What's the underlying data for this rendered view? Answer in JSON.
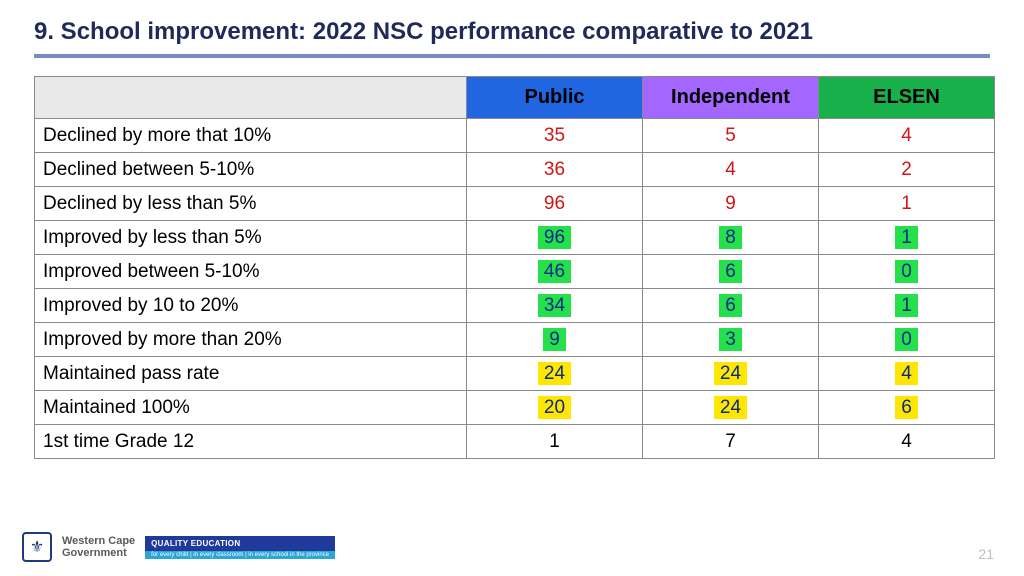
{
  "title": "9. School improvement: 2022 NSC performance comparative to 2021",
  "hr_color": "#7b8ac7",
  "columns": [
    {
      "label": "Public",
      "bg": "#1f66e0",
      "fg": "#000000"
    },
    {
      "label": "Independent",
      "bg": "#a366ff",
      "fg": "#000000"
    },
    {
      "label": "ELSEN",
      "bg": "#17b04b",
      "fg": "#000000"
    }
  ],
  "value_styles": {
    "red": {
      "color": "#d01616",
      "highlight": null
    },
    "green": {
      "color": "#0a2a8a",
      "highlight": "#24e04a"
    },
    "yellow": {
      "color": "#0a2a8a",
      "highlight": "#ffe600"
    },
    "plain": {
      "color": "#000000",
      "highlight": null
    }
  },
  "rows": [
    {
      "label": "Declined by more that 10%",
      "vals": [
        {
          "v": "35",
          "s": "red"
        },
        {
          "v": "5",
          "s": "red"
        },
        {
          "v": "4",
          "s": "red"
        }
      ]
    },
    {
      "label": "Declined between 5-10%",
      "vals": [
        {
          "v": "36",
          "s": "red"
        },
        {
          "v": "4",
          "s": "red"
        },
        {
          "v": "2",
          "s": "red"
        }
      ]
    },
    {
      "label": "Declined by less  than 5%",
      "vals": [
        {
          "v": "96",
          "s": "red"
        },
        {
          "v": "9",
          "s": "red"
        },
        {
          "v": "1",
          "s": "red"
        }
      ]
    },
    {
      "label": "Improved by less than 5%",
      "vals": [
        {
          "v": "96",
          "s": "green"
        },
        {
          "v": "8",
          "s": "green"
        },
        {
          "v": "1",
          "s": "green"
        }
      ]
    },
    {
      "label": "Improved between 5-10%",
      "vals": [
        {
          "v": "46",
          "s": "green"
        },
        {
          "v": "6",
          "s": "green"
        },
        {
          "v": "0",
          "s": "green"
        }
      ]
    },
    {
      "label": "Improved by 10 to 20%",
      "vals": [
        {
          "v": "34",
          "s": "green"
        },
        {
          "v": "6",
          "s": "green"
        },
        {
          "v": "1",
          "s": "green"
        }
      ]
    },
    {
      "label": "Improved by more than 20%",
      "vals": [
        {
          "v": "9",
          "s": "green"
        },
        {
          "v": "3",
          "s": "green"
        },
        {
          "v": "0",
          "s": "green"
        }
      ]
    },
    {
      "label": "Maintained pass rate",
      "vals": [
        {
          "v": "24",
          "s": "yellow"
        },
        {
          "v": "24",
          "s": "yellow"
        },
        {
          "v": "4",
          "s": "yellow"
        }
      ]
    },
    {
      "label": "Maintained 100%",
      "vals": [
        {
          "v": "20",
          "s": "yellow"
        },
        {
          "v": "24",
          "s": "yellow"
        },
        {
          "v": "6",
          "s": "yellow"
        }
      ]
    },
    {
      "label": "1st time Grade 12",
      "vals": [
        {
          "v": "1",
          "s": "plain"
        },
        {
          "v": "7",
          "s": "plain"
        },
        {
          "v": "4",
          "s": "plain"
        }
      ]
    }
  ],
  "footer": {
    "gov_line1": "Western Cape",
    "gov_line2": "Government",
    "badge": "QUALITY EDUCATION",
    "badge_bg": "#1f3a9a",
    "sub": "for every child | in every classroom | in every school in the province",
    "sub_bg": "#2aa7d4"
  },
  "page_number": "21"
}
